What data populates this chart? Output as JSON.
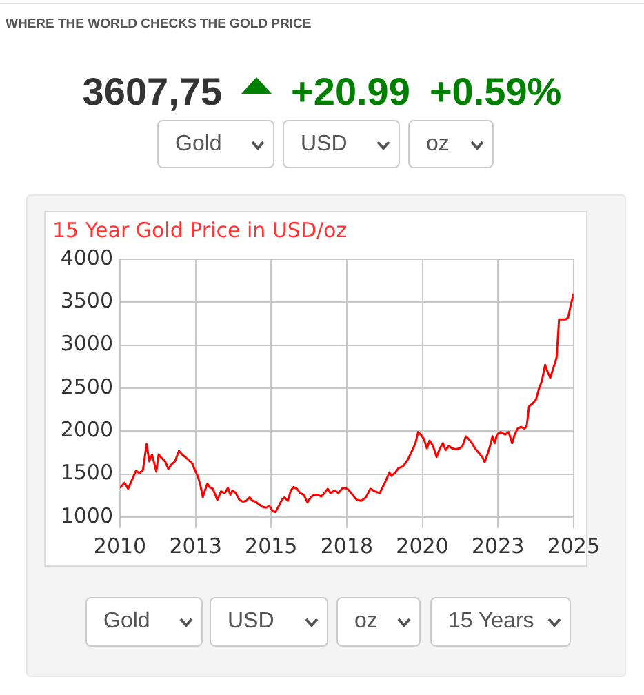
{
  "chart_data": {
    "type": "line",
    "title": "15 Year Gold Price in USD/oz",
    "annotations": [
      "WHERE THE WORLD CHECKS THE GOLD PRICE",
      "3607,75",
      "+20.99",
      "+0.59%",
      "Gold",
      "USD",
      "oz",
      "Gold",
      "USD",
      "oz",
      "15 Years"
    ],
    "x": [
      2010.0,
      2010.15,
      2010.27,
      2010.38,
      2010.53,
      2010.64,
      2010.76,
      2010.88,
      2010.97,
      2011.06,
      2011.2,
      2011.28,
      2011.37,
      2011.49,
      2011.6,
      2011.7,
      2011.82,
      2011.95,
      2012.05,
      2012.16,
      2012.28,
      2012.4,
      2012.46,
      2012.58,
      2012.66,
      2012.74,
      2012.81,
      2012.89,
      2012.96,
      2013.07,
      2013.22,
      2013.34,
      2013.47,
      2013.57,
      2013.65,
      2013.72,
      2013.83,
      2013.95,
      2014.07,
      2014.18,
      2014.29,
      2014.38,
      2014.48,
      2014.59,
      2014.71,
      2014.83,
      2014.94,
      2015.05,
      2015.14,
      2015.24,
      2015.35,
      2015.44,
      2015.55,
      2015.65,
      2015.74,
      2015.85,
      2015.96,
      2016.08,
      2016.2,
      2016.31,
      2016.41,
      2016.53,
      2016.66,
      2016.76,
      2016.87,
      2016.96,
      2017.11,
      2017.22,
      2017.37,
      2017.52,
      2017.67,
      2017.83,
      2017.98,
      2018.13,
      2018.28,
      2018.43,
      2018.59,
      2018.76,
      2018.91,
      2018.98,
      2019.11,
      2019.21,
      2019.36,
      2019.52,
      2019.67,
      2019.77,
      2019.86,
      2019.97,
      2020.05,
      2020.15,
      2020.24,
      2020.35,
      2020.47,
      2020.58,
      2020.68,
      2020.77,
      2020.88,
      2020.98,
      2021.11,
      2021.23,
      2021.33,
      2021.44,
      2021.53,
      2021.64,
      2021.74,
      2021.86,
      2021.98,
      2022.06,
      2022.17,
      2022.24,
      2022.32,
      2022.39,
      2022.47,
      2022.59,
      2022.74,
      2022.85,
      2022.97,
      2023.05,
      2023.15,
      2023.26,
      2023.38,
      2023.45,
      2023.53,
      2023.64,
      2023.76,
      2023.86,
      2023.95,
      2024.06,
      2024.14,
      2024.23,
      2024.33,
      2024.44,
      2024.52,
      2024.62,
      2024.74,
      2024.82,
      2024.89,
      2025.0
    ],
    "series": [
      {
        "color": "#ff0000",
        "values": [
          1340,
          1400,
          1330,
          1420,
          1540,
          1510,
          1550,
          1850,
          1650,
          1730,
          1530,
          1730,
          1690,
          1650,
          1560,
          1610,
          1650,
          1770,
          1730,
          1700,
          1660,
          1620,
          1560,
          1470,
          1370,
          1230,
          1310,
          1390,
          1350,
          1330,
          1200,
          1300,
          1280,
          1340,
          1260,
          1310,
          1280,
          1200,
          1180,
          1190,
          1230,
          1190,
          1180,
          1150,
          1120,
          1110,
          1130,
          1070,
          1060,
          1120,
          1200,
          1230,
          1190,
          1310,
          1350,
          1330,
          1280,
          1260,
          1170,
          1230,
          1260,
          1260,
          1240,
          1280,
          1330,
          1280,
          1310,
          1280,
          1340,
          1330,
          1270,
          1200,
          1190,
          1230,
          1330,
          1300,
          1280,
          1400,
          1520,
          1480,
          1520,
          1570,
          1590,
          1670,
          1780,
          1860,
          1990,
          1950,
          1910,
          1800,
          1890,
          1830,
          1700,
          1800,
          1860,
          1780,
          1830,
          1800,
          1790,
          1800,
          1830,
          1940,
          1910,
          1860,
          1800,
          1750,
          1700,
          1640,
          1750,
          1830,
          1940,
          1860,
          1960,
          1990,
          1960,
          1990,
          1860,
          1960,
          2030,
          2050,
          2030,
          2060,
          2290,
          2320,
          2370,
          2500,
          2580,
          2770,
          2690,
          2620,
          2730,
          2860,
          3300,
          3300,
          3300,
          3320,
          3440,
          3600
        ]
      }
    ],
    "xlim": [
      2010,
      2025
    ],
    "xticks": [
      2010,
      {
        "value": 2012.5,
        "label": "2013"
      },
      2015,
      {
        "value": 2017.5,
        "label": "2018"
      },
      2020,
      {
        "value": 2022.5,
        "label": "2023"
      },
      2025
    ],
    "ylim": [
      1000,
      4000
    ],
    "yticks": [
      1000,
      1500,
      2000,
      2500,
      3000,
      3500,
      4000
    ],
    "grid": true
  }
}
